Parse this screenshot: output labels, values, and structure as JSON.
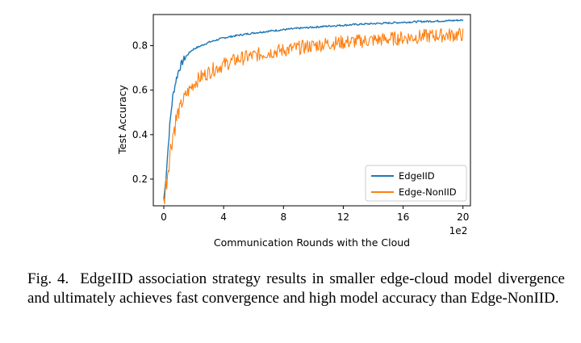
{
  "chart_data": {
    "type": "line",
    "title": "",
    "xlabel": "Communication Rounds with the Cloud",
    "ylabel": "Test Accuracy",
    "x_scale_label": "1e2",
    "xlim": [
      -0.7,
      20.5
    ],
    "ylim": [
      0.08,
      0.94
    ],
    "xticks": [
      0,
      4,
      8,
      12,
      16,
      20
    ],
    "yticks": [
      0.2,
      0.4,
      0.6,
      0.8
    ],
    "ytick_labels": [
      "0.2",
      "0.4",
      "0.6",
      "0.8"
    ],
    "legend_position": "lower-right",
    "series": [
      {
        "name": "EdgeIID",
        "color": "#1f77b4",
        "x": [
          0,
          0.1,
          0.2,
          0.3,
          0.4,
          0.5,
          0.6,
          0.8,
          1.0,
          1.2,
          1.4,
          1.6,
          1.8,
          2.0,
          2.5,
          3.0,
          3.5,
          4.0,
          5.0,
          6.0,
          7.0,
          8.0,
          9.0,
          10.0,
          11.0,
          12.0,
          13.0,
          14.0,
          15.0,
          16.0,
          17.0,
          18.0,
          19.0,
          20.0
        ],
        "values": [
          0.11,
          0.17,
          0.26,
          0.35,
          0.44,
          0.51,
          0.57,
          0.64,
          0.69,
          0.72,
          0.745,
          0.76,
          0.775,
          0.785,
          0.8,
          0.815,
          0.825,
          0.835,
          0.847,
          0.857,
          0.865,
          0.872,
          0.878,
          0.883,
          0.888,
          0.892,
          0.896,
          0.899,
          0.902,
          0.905,
          0.908,
          0.91,
          0.912,
          0.915
        ]
      },
      {
        "name": "Edge-NonIID",
        "color": "#ff7f0e",
        "x": [
          0,
          0.1,
          0.2,
          0.3,
          0.4,
          0.5,
          0.6,
          0.8,
          1.0,
          1.2,
          1.5,
          1.8,
          2.0,
          2.5,
          3.0,
          3.5,
          4.0,
          5.0,
          6.0,
          7.0,
          8.0,
          9.0,
          10.0,
          11.0,
          12.0,
          13.0,
          14.0,
          15.0,
          16.0,
          17.0,
          18.0,
          19.0,
          20.0
        ],
        "values": [
          0.11,
          0.15,
          0.2,
          0.26,
          0.31,
          0.36,
          0.4,
          0.46,
          0.5,
          0.54,
          0.58,
          0.61,
          0.63,
          0.66,
          0.68,
          0.7,
          0.715,
          0.74,
          0.755,
          0.77,
          0.78,
          0.79,
          0.8,
          0.81,
          0.815,
          0.82,
          0.825,
          0.83,
          0.835,
          0.84,
          0.845,
          0.848,
          0.85
        ]
      }
    ]
  },
  "caption": {
    "label": "Fig. 4.",
    "text": "EdgeIID association strategy results in smaller edge-cloud model divergence and ultimately achieves fast convergence and high model accuracy than Edge-NonIID."
  }
}
